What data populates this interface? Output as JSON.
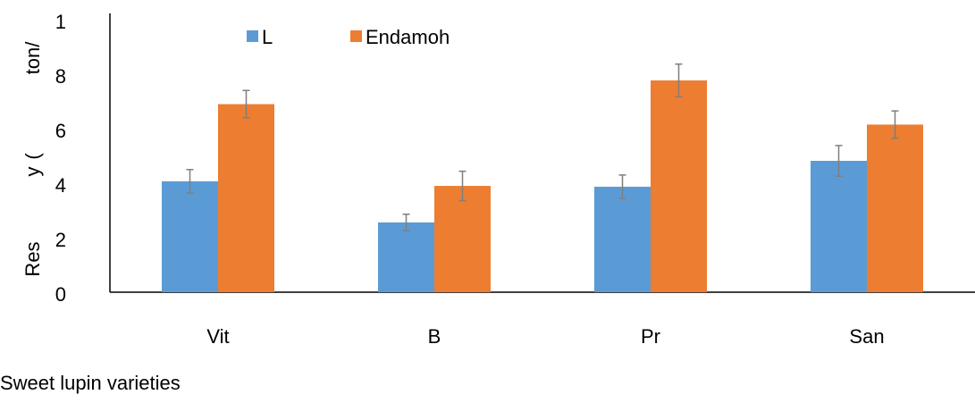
{
  "chart_data": {
    "type": "bar",
    "y_label_parts": [
      "Res",
      "y",
      "(",
      "ton/"
    ],
    "x_label": "Sweet lupin varieties",
    "categories": [
      "Vit",
      "B",
      "Pr",
      "San"
    ],
    "series": [
      {
        "name": "L",
        "color": "#5b9bd5",
        "values": [
          4.07,
          2.56,
          3.87,
          4.82
        ],
        "errors": [
          0.43,
          0.3,
          0.43,
          0.56
        ]
      },
      {
        "name": "Endamoh",
        "color": "#ed7d31",
        "values": [
          6.9,
          3.9,
          7.77,
          6.15
        ],
        "errors": [
          0.5,
          0.54,
          0.6,
          0.5
        ]
      }
    ],
    "error_color": "#7f7f7f",
    "ylim": [
      0,
      10
    ],
    "yticks": [
      0,
      2,
      4,
      6,
      8,
      {
        "value": 10,
        "label": "1"
      }
    ],
    "legend": "top"
  }
}
